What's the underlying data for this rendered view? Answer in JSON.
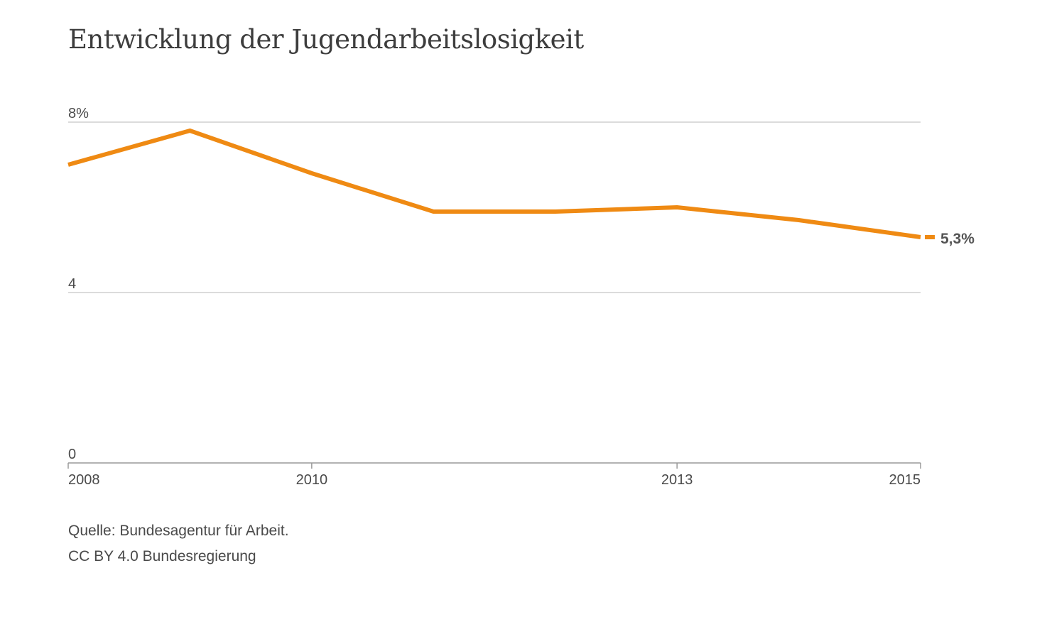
{
  "chart_data": {
    "type": "line",
    "title": "Entwicklung der Jugendarbeitslosigkeit",
    "x": [
      2008,
      2009,
      2010,
      2011,
      2012,
      2013,
      2014,
      2015
    ],
    "series": [
      {
        "values": [
          7.0,
          7.8,
          6.8,
          5.9,
          5.9,
          6.0,
          5.7,
          5.3
        ],
        "color": "#ef8a13"
      }
    ],
    "last_value_label": "5,3%",
    "xlabel": "",
    "ylabel": "",
    "ylim": [
      0,
      8
    ],
    "xlim": [
      2008,
      2015
    ],
    "y_ticks": [
      {
        "value": 8,
        "label": "8%"
      },
      {
        "value": 4,
        "label": "4"
      },
      {
        "value": 0,
        "label": "0"
      }
    ],
    "x_ticks": [
      {
        "value": 2008,
        "label": "2008"
      },
      {
        "value": 2010,
        "label": "2010"
      },
      {
        "value": 2013,
        "label": "2013"
      },
      {
        "value": 2015,
        "label": "2015"
      }
    ],
    "grid": true,
    "legend": "none"
  },
  "footer": {
    "source": "Quelle: Bundesagentur für Arbeit.",
    "license": "CC BY 4.0 Bundesregierung"
  },
  "colors": {
    "line": "#ef8a13",
    "grid": "#cfcfcf",
    "axis": "#9a9a9a",
    "text": "#4a4a4a"
  }
}
